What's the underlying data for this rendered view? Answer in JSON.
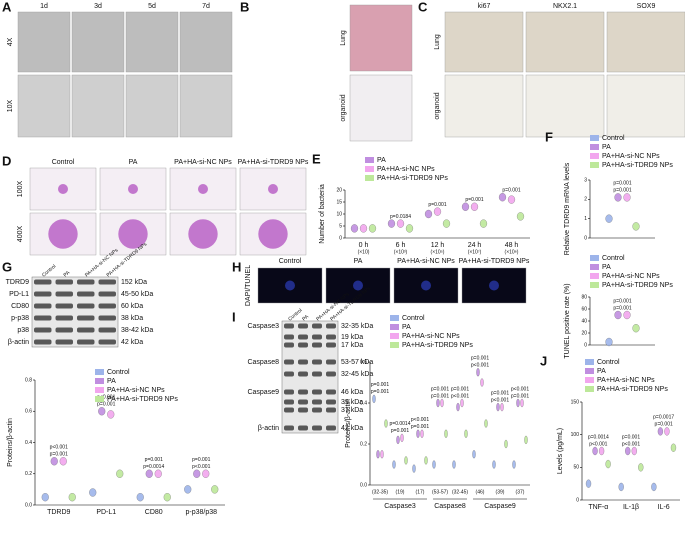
{
  "panels": {
    "A": {
      "letter": "A",
      "columns": [
        "1d",
        "3d",
        "5d",
        "7d"
      ],
      "rows": [
        "4X",
        "10X"
      ]
    },
    "B": {
      "letter": "B",
      "rows": [
        "Lung",
        "organoid"
      ]
    },
    "C": {
      "letter": "C",
      "columns": [
        "ki67",
        "NKX2.1",
        "SOX9"
      ],
      "rows": [
        "Lung",
        "organoid"
      ]
    },
    "D": {
      "letter": "D",
      "columns": [
        "Control",
        "PA",
        "PA+HA-si-NC NPs",
        "PA+HA-si-TDRD9 NPs"
      ],
      "rows": [
        "100X",
        "400X"
      ]
    },
    "H": {
      "letter": "H",
      "columns": [
        "Control",
        "PA",
        "PA+HA-si-NC NPs",
        "PA+HA-si-TDRD9 NPs"
      ],
      "rows": [
        "DAPI/TUNEL"
      ]
    }
  },
  "blots": [
    {
      "lanes": [
        "Control",
        "PA",
        "PA+HA-si-NC NPs",
        "PA+HA-si-TDRD9 NPs"
      ],
      "rows": [
        {
          "name": "TDRD9",
          "kda": "152 kDa"
        },
        {
          "name": "PD-L1",
          "kda": "45-50 kDa"
        },
        {
          "name": "CD80",
          "kda": "60 kDa"
        },
        {
          "name": "p-p38",
          "kda": "38 kDa"
        },
        {
          "name": "p38",
          "kda": "38-42 kDa"
        },
        {
          "name": "β-actin",
          "kda": "42 kDa"
        }
      ]
    },
    {
      "lanes": [
        "Control",
        "PA",
        "PA+HA-si-NC NPs",
        "PA+HA-si-TDRD9 NPs"
      ],
      "rows": [
        {
          "name": "Caspase3",
          "kda": "32-35 kDa"
        },
        {
          "name": null,
          "kda": "19 kDa"
        },
        {
          "name": null,
          "kda": "17 kDa"
        },
        {
          "name": "Caspase8",
          "kda": "53-57 kDa"
        },
        {
          "name": null,
          "kda": "32-45 kDa"
        },
        {
          "name": "Caspase9",
          "kda": "46 kDa"
        },
        {
          "name": null,
          "kda": "39 kDa"
        },
        {
          "name": null,
          "kda": "37 kDa"
        },
        {
          "name": "β-actin",
          "kda": "42 kDa"
        }
      ]
    }
  ],
  "chart_data": [
    {
      "type": "violin",
      "panel": "E",
      "y_label": "Number of bacteria",
      "categories": [
        "0 h",
        "6 h",
        "12 h",
        "24 h",
        "48 h"
      ],
      "category_notes": [
        "(×10)",
        "(×10³)",
        "(×10⁵)",
        "(×10⁷)",
        "(×10⁸)"
      ],
      "series": [
        {
          "name": "PA",
          "color": "#c08ee0",
          "values": [
            4,
            6,
            10,
            13,
            17
          ]
        },
        {
          "name": "PA+HA-si-NC NPs",
          "color": "#f2a6ee",
          "values": [
            4,
            6,
            11,
            13,
            16
          ]
        },
        {
          "name": "PA+HA-si-TDRD9 NPs",
          "color": "#bde89a",
          "values": [
            4,
            4,
            6,
            6,
            9
          ]
        }
      ],
      "annotations": [
        [],
        [
          "p=0.0184"
        ],
        [
          "p=0.001"
        ],
        [
          "p=0.001"
        ],
        [
          "p=0.001"
        ]
      ],
      "ylim": [
        0,
        20
      ],
      "yticks": [
        0,
        5,
        10,
        15,
        20
      ]
    },
    {
      "type": "violin",
      "panel": "F",
      "y_label": "Relative TDRD9 mRNA levels",
      "categories": [
        null
      ],
      "series": [
        {
          "name": "Control",
          "color": "#9db4ea",
          "values": [
            1
          ]
        },
        {
          "name": "PA",
          "color": "#c08ee0",
          "values": [
            2.1
          ]
        },
        {
          "name": "PA+HA-si-NC NPs",
          "color": "#f2a6ee",
          "values": [
            2.1
          ]
        },
        {
          "name": "PA+HA-si-TDRD9 NPs",
          "color": "#bde89a",
          "values": [
            0.6
          ]
        }
      ],
      "annotations": [
        [
          "p=0.001",
          "p=0.001"
        ]
      ],
      "ylim": [
        0,
        3
      ],
      "yticks": [
        0,
        1,
        2,
        3
      ]
    },
    {
      "type": "violin",
      "y_label": "TUNEL positive rate (%)",
      "categories": [
        null
      ],
      "series": [
        {
          "name": "Control",
          "color": "#9db4ea",
          "values": [
            5
          ]
        },
        {
          "name": "PA",
          "color": "#c08ee0",
          "values": [
            50
          ]
        },
        {
          "name": "PA+HA-si-NC NPs",
          "color": "#f2a6ee",
          "values": [
            50
          ]
        },
        {
          "name": "PA+HA-si-TDRD9 NPs",
          "color": "#bde89a",
          "values": [
            28
          ]
        }
      ],
      "annotations": [
        [
          "p=0.001",
          "p=0.001"
        ]
      ],
      "ylim": [
        0,
        80
      ],
      "yticks": [
        0,
        20,
        40,
        60,
        80
      ]
    },
    {
      "type": "violin",
      "panel": "G",
      "y_label": "Proteins/β-actin",
      "categories": [
        "TDRD9",
        "PD-L1",
        "CD80",
        "p-p38/p38"
      ],
      "series": [
        {
          "name": "Control",
          "color": "#9db4ea",
          "values": [
            0.05,
            0.08,
            0.05,
            0.1
          ]
        },
        {
          "name": "PA",
          "color": "#c08ee0",
          "values": [
            0.28,
            0.6,
            0.2,
            0.2
          ]
        },
        {
          "name": "PA+HA-si-NC NPs",
          "color": "#f2a6ee",
          "values": [
            0.28,
            0.58,
            0.2,
            0.2
          ]
        },
        {
          "name": "PA+HA-si-TDRD9 NPs",
          "color": "#bde89a",
          "values": [
            0.05,
            0.2,
            0.05,
            0.1
          ]
        }
      ],
      "annotations": [
        [
          "p=0.001",
          "p<0.001"
        ],
        [
          "p=0.001",
          "p<0.001"
        ],
        [
          "p=0.0014",
          "p=0.001"
        ],
        [
          "p<0.001",
          "p=0.001"
        ]
      ],
      "ylim": [
        0,
        0.8
      ],
      "yticks": [
        {
          "value": 0,
          "label": "0.0"
        },
        0.2,
        0.4,
        0.6,
        0.8
      ]
    },
    {
      "type": "violin",
      "panel": "I",
      "y_label": "Proteins/β-actin",
      "categories": [
        "(32-35)",
        "(19)",
        "(17)",
        "(53-57)",
        "(32-45)",
        "(46)",
        "(39)",
        "(37)"
      ],
      "groups": [
        "Caspase3",
        "Caspase8",
        "Caspase9"
      ],
      "series": [
        {
          "name": "Control",
          "color": "#9db4ea",
          "values": [
            0.42,
            0.1,
            0.08,
            0.1,
            0.1,
            0.15,
            0.1,
            0.1
          ]
        },
        {
          "name": "PA",
          "color": "#c08ee0",
          "values": [
            0.15,
            0.22,
            0.25,
            0.4,
            0.38,
            0.55,
            0.38,
            0.4
          ]
        },
        {
          "name": "PA+HA-si-NC NPs",
          "color": "#f2a6ee",
          "values": [
            0.15,
            0.23,
            0.25,
            0.4,
            0.4,
            0.5,
            0.38,
            0.4
          ]
        },
        {
          "name": "PA+HA-si-TDRD9 NPs",
          "color": "#bde89a",
          "values": [
            0.3,
            0.12,
            0.12,
            0.25,
            0.25,
            0.3,
            0.2,
            0.22
          ]
        }
      ],
      "annotations": [
        [
          "p=0.001",
          "p=0.001"
        ],
        [
          "p=0.001",
          "p=0.0014"
        ],
        [
          "p=0.001",
          "p<0.001"
        ],
        [
          "p=0.001",
          "p=0.001"
        ],
        [
          "p<0.001",
          "p=0.001"
        ],
        [
          "p<0.001",
          "p=0.001"
        ],
        [
          "p<0.001",
          "p=0.001"
        ],
        [
          "p=0.001",
          "p<0.001"
        ]
      ],
      "ylim": [
        0,
        0.6
      ],
      "yticks": [
        {
          "value": 0,
          "label": "0.0"
        },
        0.2,
        0.4,
        0.6
      ]
    },
    {
      "type": "violin",
      "panel": "J",
      "y_label": "Levels (pg/mL)",
      "categories": [
        "TNF-α",
        "IL-1β",
        "IL-6"
      ],
      "series": [
        {
          "name": "Control",
          "color": "#9db4ea",
          "values": [
            25,
            20,
            20
          ]
        },
        {
          "name": "PA",
          "color": "#c08ee0",
          "values": [
            75,
            75,
            105
          ]
        },
        {
          "name": "PA+HA-si-NC NPs",
          "color": "#f2a6ee",
          "values": [
            75,
            75,
            105
          ]
        },
        {
          "name": "PA+HA-si-TDRD9 NPs",
          "color": "#bde89a",
          "values": [
            55,
            50,
            80
          ]
        }
      ],
      "annotations": [
        [
          "p<0.001",
          "p=0.0014"
        ],
        [
          "p<0.001",
          "p=0.001"
        ],
        [
          "p=0.001",
          "p=0.0017"
        ]
      ],
      "ylim": [
        0,
        150
      ],
      "yticks": [
        0,
        50,
        100,
        150
      ]
    }
  ]
}
